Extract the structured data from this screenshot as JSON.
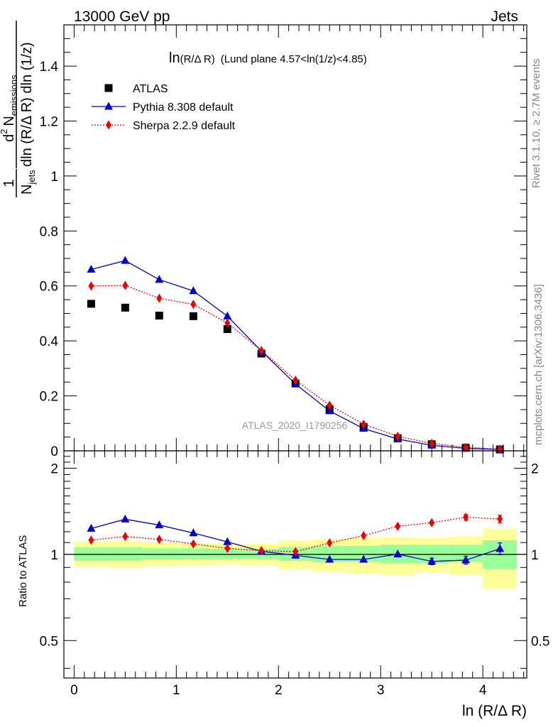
{
  "header": {
    "left": "13000 GeV pp",
    "right": "Jets"
  },
  "side_text": {
    "rivet": "Rivet 3.1.10, ≥ 2.7M events",
    "mcplots": "mcplots.cern.ch [arXiv:1306.3436]"
  },
  "chart_data": [
    {
      "type": "scatter",
      "title_main": "ln",
      "title_small": "(R/Δ R)",
      "title_rest": "(Lund plane 4.57<ln(1/z)<4.85)",
      "ylabel": {
        "one": "1",
        "n": "N",
        "jets": "jets",
        "d": "d",
        "two": "2",
        "emissions": "emissions",
        "dln": "dln (R/Δ R) dln (1/z)"
      },
      "watermark": "ATLAS_2020_I1790256",
      "xlim": [
        -0.1,
        4.43
      ],
      "ylim": [
        0,
        1.55
      ],
      "yticks": [
        0,
        0.2,
        0.4,
        0.6,
        0.8,
        1,
        1.2,
        1.4
      ],
      "ytick_labels": [
        "0",
        "0.2",
        "0.4",
        "0.6",
        "0.8",
        "1",
        "1.2",
        "1.4"
      ],
      "legend_position": "top-left",
      "x": [
        0.167,
        0.5,
        0.833,
        1.167,
        1.5,
        1.833,
        2.167,
        2.5,
        2.833,
        3.167,
        3.5,
        3.833,
        4.167
      ],
      "series": [
        {
          "name": "ATLAS",
          "marker": "square",
          "color": "#000000",
          "values": [
            0.535,
            0.521,
            0.492,
            0.49,
            0.443,
            0.354,
            0.245,
            0.151,
            0.087,
            0.046,
            0.024,
            0.011,
            0.005
          ]
        },
        {
          "name": "Pythia 8.308 default",
          "marker": "triangle",
          "color": "#0000cc",
          "values": [
            0.66,
            0.692,
            0.623,
            0.582,
            0.49,
            0.363,
            0.243,
            0.145,
            0.081,
            0.043,
            0.02,
            0.009,
            0.005
          ]
        },
        {
          "name": "Sherpa 2.2.9 default",
          "marker": "diamond",
          "color": "#ee0000",
          "values": [
            0.6,
            0.602,
            0.555,
            0.533,
            0.465,
            0.365,
            0.257,
            0.166,
            0.097,
            0.053,
            0.027,
            0.013,
            0.006
          ]
        }
      ]
    },
    {
      "type": "scatter",
      "ylabel": "Ratio to ATLAS",
      "xlabel": "ln (R/Δ R)",
      "xlim": [
        -0.1,
        4.43
      ],
      "ylim": [
        0.37,
        2.3
      ],
      "yscale": "log",
      "yticks": [
        0.5,
        1,
        2
      ],
      "ytick_labels": [
        "0.5",
        "1",
        "2"
      ],
      "xticks": [
        0,
        1,
        2,
        3,
        4
      ],
      "xtick_labels": [
        "0",
        "1",
        "2",
        "3",
        "4"
      ],
      "x": [
        0.167,
        0.5,
        0.833,
        1.167,
        1.5,
        1.833,
        2.167,
        2.5,
        2.833,
        3.167,
        3.5,
        3.833,
        4.167
      ],
      "bin_edges": [
        0,
        0.333,
        0.667,
        1,
        1.333,
        1.667,
        2,
        2.333,
        2.667,
        3,
        3.333,
        3.667,
        4,
        4.333
      ],
      "band_inner": {
        "color": "#99ff99",
        "lo": [
          0.95,
          0.95,
          0.96,
          0.96,
          0.965,
          0.965,
          0.95,
          0.94,
          0.94,
          0.93,
          0.93,
          0.94,
          0.89
        ],
        "hi": [
          1.06,
          1.06,
          1.05,
          1.05,
          1.045,
          1.045,
          1.06,
          1.07,
          1.07,
          1.08,
          1.08,
          1.08,
          1.12
        ]
      },
      "band_outer": {
        "color": "#ffff99",
        "lo": [
          0.905,
          0.895,
          0.91,
          0.915,
          0.92,
          0.915,
          0.885,
          0.87,
          0.855,
          0.845,
          0.865,
          0.85,
          0.76
        ],
        "hi": [
          1.11,
          1.12,
          1.1,
          1.095,
          1.09,
          1.09,
          1.12,
          1.13,
          1.14,
          1.15,
          1.14,
          1.155,
          1.23
        ]
      },
      "series": [
        {
          "name": "Pythia 8.308 default",
          "marker": "triangle",
          "color": "#0000cc",
          "values": [
            1.232,
            1.327,
            1.266,
            1.188,
            1.106,
            1.025,
            0.992,
            0.96,
            0.96,
            1.002,
            0.945,
            0.955,
            1.047
          ],
          "errors": [
            0,
            0,
            0,
            0,
            0,
            0,
            0,
            0,
            0,
            0,
            0.025,
            0.03,
            0.05
          ]
        },
        {
          "name": "Sherpa 2.2.9 default",
          "marker": "diamond",
          "color": "#ee0000",
          "values": [
            1.122,
            1.155,
            1.128,
            1.088,
            1.05,
            1.031,
            1.022,
            1.097,
            1.163,
            1.254,
            1.29,
            1.348,
            1.33
          ],
          "errors": [
            0,
            0,
            0,
            0,
            0,
            0,
            0,
            0,
            0,
            0,
            0,
            0.03,
            0.04
          ]
        }
      ]
    }
  ]
}
